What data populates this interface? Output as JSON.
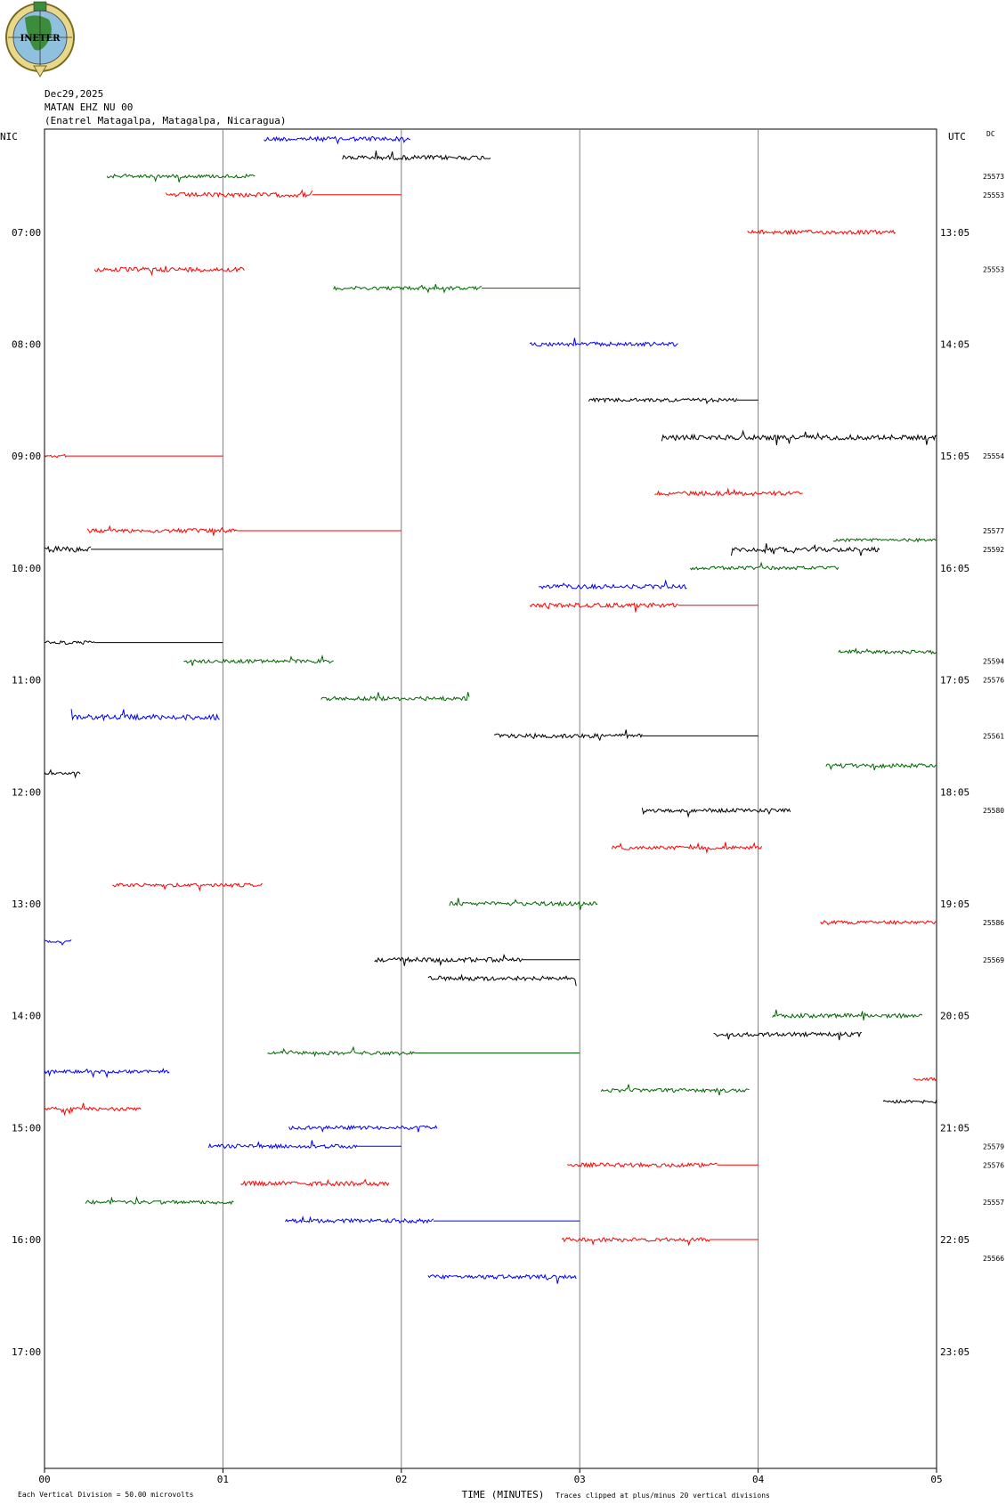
{
  "logo": {
    "text": "INETER"
  },
  "header": {
    "date": "Dec29,2025",
    "station_code": "MATAN EHZ NU 00",
    "station_name": "(Enatrel Matagalpa, Matagalpa, Nicaragua)"
  },
  "chart_data": {
    "type": "line",
    "left_axis_title": "NIC",
    "right_axis_title": "UTC",
    "right_corner_label": "DC",
    "xlabel": "TIME (MINUTES)",
    "x_ticks": [
      "00",
      "01",
      "02",
      "03",
      "04",
      "05"
    ],
    "xlim": [
      0,
      5
    ],
    "left_hour_labels": [
      "07:00",
      "08:00",
      "09:00",
      "10:00",
      "11:00",
      "12:00",
      "13:00",
      "14:00",
      "15:00",
      "16:00",
      "17:00"
    ],
    "right_hour_labels": [
      "13:05",
      "14:05",
      "15:05",
      "16:05",
      "17:05",
      "18:05",
      "19:05",
      "20:05",
      "21:05",
      "22:05",
      "23:05"
    ],
    "dc_labels": [
      {
        "row": 3,
        "text": "25573"
      },
      {
        "row": 4,
        "text": "25553"
      },
      {
        "row": 8,
        "text": "25553"
      },
      {
        "row": 18,
        "text": "25554"
      },
      {
        "row": 22,
        "text": "25577"
      },
      {
        "row": 23,
        "text": "25592"
      },
      {
        "row": 29,
        "text": "25594"
      },
      {
        "row": 30,
        "text": "25576"
      },
      {
        "row": 33,
        "text": "25561"
      },
      {
        "row": 37,
        "text": "25580"
      },
      {
        "row": 43,
        "text": "25586"
      },
      {
        "row": 45,
        "text": "25569"
      },
      {
        "row": 55,
        "text": "25579"
      },
      {
        "row": 56,
        "text": "25576"
      },
      {
        "row": 58,
        "text": "25557"
      },
      {
        "row": 61,
        "text": "25566"
      }
    ],
    "footer_left": "Each Vertical Division =   50.00 microvolts",
    "footer_right": "Traces clipped at plus/minus 20 vertical divisions",
    "colors": [
      "#0000ff",
      "#000000",
      "#ff0000",
      "#006600"
    ],
    "traces": [
      {
        "row": 1,
        "color": "#0000ff",
        "segments": [
          [
            1.23,
            2.05,
            1.0
          ]
        ]
      },
      {
        "row": 2,
        "color": "#000000",
        "segments": [
          [
            1.67,
            2.5,
            1.0
          ]
        ]
      },
      {
        "row": 3,
        "color": "#006600",
        "segments": [
          [
            0.35,
            1.18,
            0.8
          ]
        ]
      },
      {
        "row": 4,
        "color": "#ff0000",
        "segments": [
          [
            0.68,
            1.5,
            1.0
          ],
          [
            1.5,
            2.0,
            0
          ]
        ]
      },
      {
        "row": 6,
        "color": "#ff0000",
        "segments": [
          [
            3.94,
            4.77,
            0.9
          ]
        ]
      },
      {
        "row": 8,
        "color": "#ff0000",
        "segments": [
          [
            0.28,
            1.12,
            1.0
          ]
        ]
      },
      {
        "row": 9,
        "color": "#006600",
        "segments": [
          [
            1.62,
            2.45,
            0.8
          ],
          [
            2.45,
            3.0,
            0
          ]
        ]
      },
      {
        "row": 12,
        "color": "#0000ff",
        "segments": [
          [
            2.72,
            3.55,
            0.9
          ]
        ]
      },
      {
        "row": 15,
        "color": "#000000",
        "segments": [
          [
            3.05,
            3.88,
            0.8
          ],
          [
            3.88,
            4.0,
            0
          ]
        ]
      },
      {
        "row": 17,
        "color": "#000000",
        "segments": [
          [
            3.46,
            5.0,
            1.1
          ]
        ]
      },
      {
        "row": 18,
        "color": "#ff0000",
        "segments": [
          [
            0.0,
            0.12,
            0.7
          ],
          [
            0.12,
            1.0,
            0
          ]
        ]
      },
      {
        "row": 20,
        "color": "#ff0000",
        "segments": [
          [
            3.42,
            4.25,
            0.9
          ]
        ]
      },
      {
        "row": 22,
        "color": "#ff0000",
        "segments": [
          [
            0.24,
            1.08,
            0.9
          ],
          [
            1.08,
            2.0,
            0
          ]
        ]
      },
      {
        "row": 22.5,
        "color": "#006600",
        "segments": [
          [
            4.42,
            5.0,
            0.7
          ]
        ]
      },
      {
        "row": 23,
        "color": "#000000",
        "segments": [
          [
            0.0,
            0.26,
            1.3
          ],
          [
            0.26,
            1.0,
            0
          ]
        ]
      },
      {
        "row": 23.01,
        "color": "#000000",
        "segments": [
          [
            3.85,
            4.68,
            1.0
          ]
        ]
      },
      {
        "row": 24,
        "color": "#006600",
        "segments": [
          [
            3.62,
            4.45,
            0.8
          ]
        ]
      },
      {
        "row": 25,
        "color": "#0000ff",
        "segments": [
          [
            2.77,
            3.6,
            0.9
          ]
        ]
      },
      {
        "row": 26,
        "color": "#ff0000",
        "segments": [
          [
            2.72,
            3.55,
            1.0
          ],
          [
            3.55,
            4.0,
            0
          ]
        ]
      },
      {
        "row": 28,
        "color": "#000000",
        "segments": [
          [
            0.0,
            0.28,
            0.8
          ],
          [
            0.28,
            1.0,
            0
          ]
        ]
      },
      {
        "row": 28.5,
        "color": "#006600",
        "segments": [
          [
            4.45,
            5.0,
            0.8
          ]
        ]
      },
      {
        "row": 29,
        "color": "#006600",
        "segments": [
          [
            0.78,
            1.62,
            0.8
          ]
        ]
      },
      {
        "row": 31,
        "color": "#006600",
        "segments": [
          [
            1.55,
            2.38,
            0.9
          ]
        ]
      },
      {
        "row": 32,
        "color": "#0000ff",
        "segments": [
          [
            0.15,
            0.98,
            1.2
          ]
        ]
      },
      {
        "row": 33,
        "color": "#000000",
        "segments": [
          [
            2.52,
            3.35,
            0.9
          ],
          [
            3.35,
            4.0,
            0
          ]
        ]
      },
      {
        "row": 34.6,
        "color": "#006600",
        "segments": [
          [
            4.38,
            5.0,
            0.9
          ]
        ]
      },
      {
        "row": 35,
        "color": "#000000",
        "segments": [
          [
            0.0,
            0.2,
            0.6
          ]
        ]
      },
      {
        "row": 37,
        "color": "#000000",
        "segments": [
          [
            3.35,
            4.18,
            0.8
          ]
        ]
      },
      {
        "row": 39,
        "color": "#ff0000",
        "segments": [
          [
            3.18,
            4.02,
            0.8
          ]
        ]
      },
      {
        "row": 41,
        "color": "#ff0000",
        "segments": [
          [
            0.38,
            1.22,
            0.8
          ]
        ]
      },
      {
        "row": 42,
        "color": "#006600",
        "segments": [
          [
            2.27,
            3.1,
            0.9
          ]
        ]
      },
      {
        "row": 43,
        "color": "#ff0000",
        "segments": [
          [
            4.35,
            5.0,
            0.8
          ]
        ]
      },
      {
        "row": 44,
        "color": "#0000ff",
        "segments": [
          [
            0.0,
            0.15,
            0.8
          ]
        ]
      },
      {
        "row": 45,
        "color": "#000000",
        "segments": [
          [
            1.85,
            2.68,
            1.0
          ],
          [
            2.68,
            3.0,
            0
          ]
        ]
      },
      {
        "row": 46,
        "color": "#000000",
        "segments": [
          [
            2.15,
            2.98,
            1.0
          ]
        ]
      },
      {
        "row": 48,
        "color": "#006600",
        "segments": [
          [
            4.08,
            4.92,
            0.9
          ]
        ]
      },
      {
        "row": 49,
        "color": "#000000",
        "segments": [
          [
            3.75,
            4.58,
            0.9
          ]
        ]
      },
      {
        "row": 50,
        "color": "#006600",
        "segments": [
          [
            1.25,
            2.08,
            0.8
          ],
          [
            2.08,
            3.0,
            0
          ]
        ]
      },
      {
        "row": 51,
        "color": "#0000ff",
        "segments": [
          [
            0.0,
            0.7,
            0.7
          ]
        ]
      },
      {
        "row": 51.4,
        "color": "#ff0000",
        "segments": [
          [
            4.87,
            5.0,
            0.6
          ]
        ]
      },
      {
        "row": 52,
        "color": "#006600",
        "segments": [
          [
            3.12,
            3.95,
            0.8
          ]
        ]
      },
      {
        "row": 52.6,
        "color": "#000000",
        "segments": [
          [
            4.7,
            5.0,
            0.8
          ]
        ]
      },
      {
        "row": 53,
        "color": "#ff0000",
        "segments": [
          [
            0.0,
            0.54,
            0.8
          ]
        ]
      },
      {
        "row": 54,
        "color": "#0000ff",
        "segments": [
          [
            1.37,
            2.2,
            0.8
          ]
        ]
      },
      {
        "row": 55,
        "color": "#0000ff",
        "segments": [
          [
            0.92,
            1.75,
            0.9
          ],
          [
            1.75,
            2.0,
            0
          ]
        ]
      },
      {
        "row": 56,
        "color": "#ff0000",
        "segments": [
          [
            2.93,
            3.77,
            0.9
          ],
          [
            3.77,
            4.0,
            0
          ]
        ]
      },
      {
        "row": 57,
        "color": "#ff0000",
        "segments": [
          [
            1.1,
            1.93,
            1.0
          ]
        ]
      },
      {
        "row": 58,
        "color": "#006600",
        "segments": [
          [
            0.23,
            1.06,
            0.8
          ]
        ]
      },
      {
        "row": 59,
        "color": "#0000ff",
        "segments": [
          [
            1.35,
            2.18,
            0.9
          ],
          [
            2.18,
            3.0,
            0
          ]
        ]
      },
      {
        "row": 60,
        "color": "#ff0000",
        "segments": [
          [
            2.9,
            3.73,
            0.9
          ],
          [
            3.73,
            4.0,
            0
          ]
        ]
      },
      {
        "row": 62,
        "color": "#0000ff",
        "segments": [
          [
            2.15,
            2.98,
            0.9
          ]
        ]
      }
    ]
  }
}
